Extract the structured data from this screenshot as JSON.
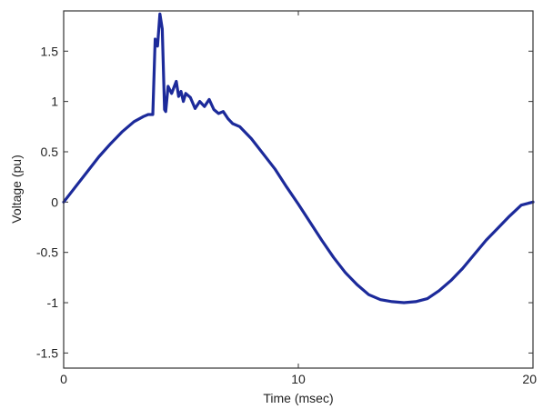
{
  "chart_data": {
    "type": "line",
    "title": "",
    "xlabel": "Time (msec)",
    "ylabel": "Voltage (pu)",
    "xlim": [
      0,
      20
    ],
    "ylim": [
      -1.65,
      1.9
    ],
    "xticks": [
      0,
      10,
      20
    ],
    "xtick_labels": [
      "0",
      "10",
      "20"
    ],
    "yticks": [
      1.5,
      1,
      0.5,
      0,
      -0.5,
      -1,
      -1.5
    ],
    "ytick_labels": [
      "1.5",
      "1",
      "0.5",
      "0",
      "-0.5",
      "-1",
      "-1.5"
    ],
    "grid": false,
    "legend": "none",
    "series": [
      {
        "color": "#1c2a9a",
        "x": [
          0,
          0.5,
          1,
          1.5,
          2,
          2.5,
          3,
          3.4,
          3.6,
          3.8,
          3.9,
          4.0,
          4.1,
          4.2,
          4.3,
          4.35,
          4.45,
          4.6,
          4.8,
          4.9,
          5.0,
          5.1,
          5.2,
          5.4,
          5.6,
          5.8,
          6.0,
          6.2,
          6.4,
          6.6,
          6.8,
          7.0,
          7.2,
          7.5,
          8,
          8.5,
          9,
          9.5,
          10,
          10.5,
          11,
          11.5,
          12,
          12.5,
          13,
          13.5,
          14,
          14.5,
          15,
          15.5,
          16,
          16.5,
          17,
          17.5,
          18,
          18.5,
          19,
          19.5,
          20
        ],
        "values": [
          0,
          0.15,
          0.3,
          0.45,
          0.58,
          0.7,
          0.8,
          0.85,
          0.87,
          0.87,
          1.62,
          1.55,
          1.87,
          1.72,
          0.92,
          0.9,
          1.15,
          1.08,
          1.2,
          1.05,
          1.1,
          1.0,
          1.08,
          1.04,
          0.93,
          1.0,
          0.95,
          1.02,
          0.92,
          0.88,
          0.9,
          0.83,
          0.78,
          0.75,
          0.63,
          0.48,
          0.33,
          0.15,
          -0.02,
          -0.2,
          -0.38,
          -0.55,
          -0.7,
          -0.82,
          -0.92,
          -0.97,
          -0.99,
          -1.0,
          -0.99,
          -0.96,
          -0.88,
          -0.78,
          -0.66,
          -0.52,
          -0.38,
          -0.26,
          -0.14,
          -0.03,
          0.0
        ]
      }
    ]
  }
}
